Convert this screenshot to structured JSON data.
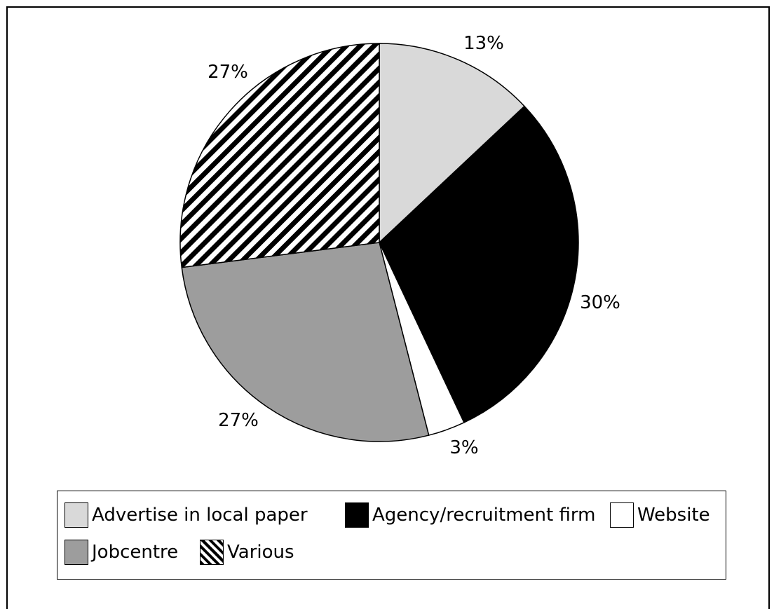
{
  "chart_data": {
    "type": "pie",
    "slices": [
      {
        "label": "Advertise in local paper",
        "value": 13,
        "value_label": "13%",
        "color": "#d9d9d9",
        "pattern": "solid"
      },
      {
        "label": "Agency/recruitment firm",
        "value": 30,
        "value_label": "30%",
        "color": "#000000",
        "pattern": "solid"
      },
      {
        "label": "Website",
        "value": 3,
        "value_label": "3%",
        "color": "#ffffff",
        "pattern": "solid"
      },
      {
        "label": "Jobcentre",
        "value": 27,
        "value_label": "27%",
        "color": "#9d9d9d",
        "pattern": "solid"
      },
      {
        "label": "Various",
        "value": 27,
        "value_label": "27%",
        "color": "#000000",
        "pattern": "diagonal-stripes"
      }
    ],
    "start_angle": "12 o'clock",
    "direction": "clockwise",
    "legend_placement": "bottom"
  }
}
